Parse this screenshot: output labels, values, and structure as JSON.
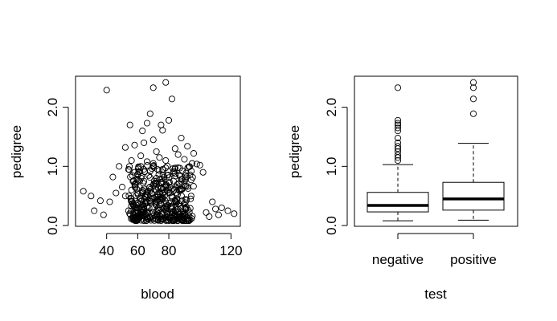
{
  "chart_data": [
    {
      "type": "scatter",
      "title": "",
      "xlabel": "blood",
      "ylabel": "pedigree",
      "xlim": [
        20,
        126
      ],
      "ylim": [
        0.0,
        2.5
      ],
      "xticks": [
        40,
        60,
        80,
        120
      ],
      "xtick_labels": [
        "40",
        "60",
        "80",
        "120"
      ],
      "yticks": [
        0.0,
        1.0,
        2.0
      ],
      "ytick_labels": [
        "0.0",
        "1.0",
        "2.0"
      ],
      "grid": false,
      "points": [
        [
          40,
          2.29
        ],
        [
          70,
          2.33
        ],
        [
          78,
          2.42
        ],
        [
          82,
          2.14
        ],
        [
          80,
          1.78
        ],
        [
          75,
          1.7
        ],
        [
          68,
          1.89
        ],
        [
          66,
          1.73
        ],
        [
          63,
          1.6
        ],
        [
          55,
          1.7
        ],
        [
          76,
          1.61
        ],
        [
          88,
          1.48
        ],
        [
          92,
          1.34
        ],
        [
          52,
          1.32
        ],
        [
          58,
          1.36
        ],
        [
          64,
          1.4
        ],
        [
          70,
          1.45
        ],
        [
          84,
          1.3
        ],
        [
          96,
          1.22
        ],
        [
          98,
          1.04
        ],
        [
          100,
          1.02
        ],
        [
          102,
          0.9
        ],
        [
          95,
          1.05
        ],
        [
          86,
          1.2
        ],
        [
          72,
          1.25
        ],
        [
          62,
          1.18
        ],
        [
          56,
          1.1
        ],
        [
          48,
          1.0
        ],
        [
          54,
          0.95
        ],
        [
          44,
          0.82
        ],
        [
          50,
          0.65
        ],
        [
          46,
          0.55
        ],
        [
          42,
          0.4
        ],
        [
          36,
          0.42
        ],
        [
          32,
          0.25
        ],
        [
          25,
          0.58
        ],
        [
          30,
          0.5
        ],
        [
          38,
          0.18
        ],
        [
          108,
          0.4
        ],
        [
          110,
          0.28
        ],
        [
          114,
          0.3
        ],
        [
          112,
          0.18
        ],
        [
          122,
          0.2
        ],
        [
          118,
          0.25
        ],
        [
          106,
          0.15
        ],
        [
          104,
          0.22
        ],
        [
          60,
          0.3
        ],
        [
          62,
          0.45
        ],
        [
          64,
          0.28
        ],
        [
          66,
          0.52
        ],
        [
          68,
          0.38
        ],
        [
          70,
          0.22
        ],
        [
          72,
          0.6
        ],
        [
          74,
          0.35
        ],
        [
          76,
          0.48
        ],
        [
          78,
          0.25
        ],
        [
          80,
          0.55
        ],
        [
          82,
          0.32
        ],
        [
          84,
          0.42
        ],
        [
          86,
          0.28
        ],
        [
          88,
          0.62
        ],
        [
          90,
          0.36
        ],
        [
          58,
          0.7
        ],
        [
          56,
          0.4
        ],
        [
          54,
          0.25
        ],
        [
          52,
          0.5
        ],
        [
          60,
          0.85
        ],
        [
          64,
          0.75
        ],
        [
          68,
          0.92
        ],
        [
          72,
          0.8
        ],
        [
          76,
          0.95
        ],
        [
          80,
          0.72
        ],
        [
          84,
          0.88
        ],
        [
          88,
          0.78
        ],
        [
          92,
          0.66
        ],
        [
          94,
          0.45
        ],
        [
          62,
          0.18
        ],
        [
          66,
          0.15
        ],
        [
          70,
          0.12
        ],
        [
          74,
          0.17
        ],
        [
          78,
          0.14
        ],
        [
          82,
          0.19
        ],
        [
          86,
          0.13
        ],
        [
          90,
          0.2
        ],
        [
          58,
          0.22
        ],
        [
          64,
          0.62
        ],
        [
          70,
          0.68
        ],
        [
          74,
          0.55
        ],
        [
          78,
          0.65
        ],
        [
          82,
          0.5
        ],
        [
          66,
          0.33
        ],
        [
          72,
          0.4
        ],
        [
          76,
          0.3
        ],
        [
          80,
          0.38
        ],
        [
          84,
          0.24
        ],
        [
          68,
          0.58
        ],
        [
          60,
          0.55
        ],
        [
          56,
          0.6
        ],
        [
          62,
          1.0
        ],
        [
          70,
          1.05
        ],
        [
          78,
          1.1
        ],
        [
          86,
          0.98
        ],
        [
          74,
          1.15
        ],
        [
          66,
          1.08
        ],
        [
          90,
          1.12
        ],
        [
          58,
          0.9
        ]
      ],
      "note_count": "dense cloud of several hundred points concentrated at blood 55-90, pedigree 0.1-0.8"
    },
    {
      "type": "box",
      "title": "",
      "xlabel": "test",
      "ylabel": "pedigree",
      "ylim": [
        0.0,
        2.5
      ],
      "yticks": [
        0.0,
        1.0,
        2.0
      ],
      "ytick_labels": [
        "0.0",
        "1.0",
        "2.0"
      ],
      "categories": [
        "negative",
        "positive"
      ],
      "boxes": [
        {
          "category": "negative",
          "whisker_low": 0.08,
          "q1": 0.23,
          "median": 0.34,
          "q3": 0.56,
          "whisker_high": 1.03,
          "outliers": [
            2.33,
            1.78,
            1.73,
            1.7,
            1.65,
            1.6,
            1.48,
            1.4,
            1.34,
            1.3,
            1.25,
            1.19,
            1.15,
            1.1
          ]
        },
        {
          "category": "positive",
          "whisker_low": 0.09,
          "q1": 0.26,
          "median": 0.45,
          "q3": 0.73,
          "whisker_high": 1.39,
          "outliers": [
            2.42,
            2.33,
            2.14,
            1.89
          ]
        }
      ]
    }
  ]
}
